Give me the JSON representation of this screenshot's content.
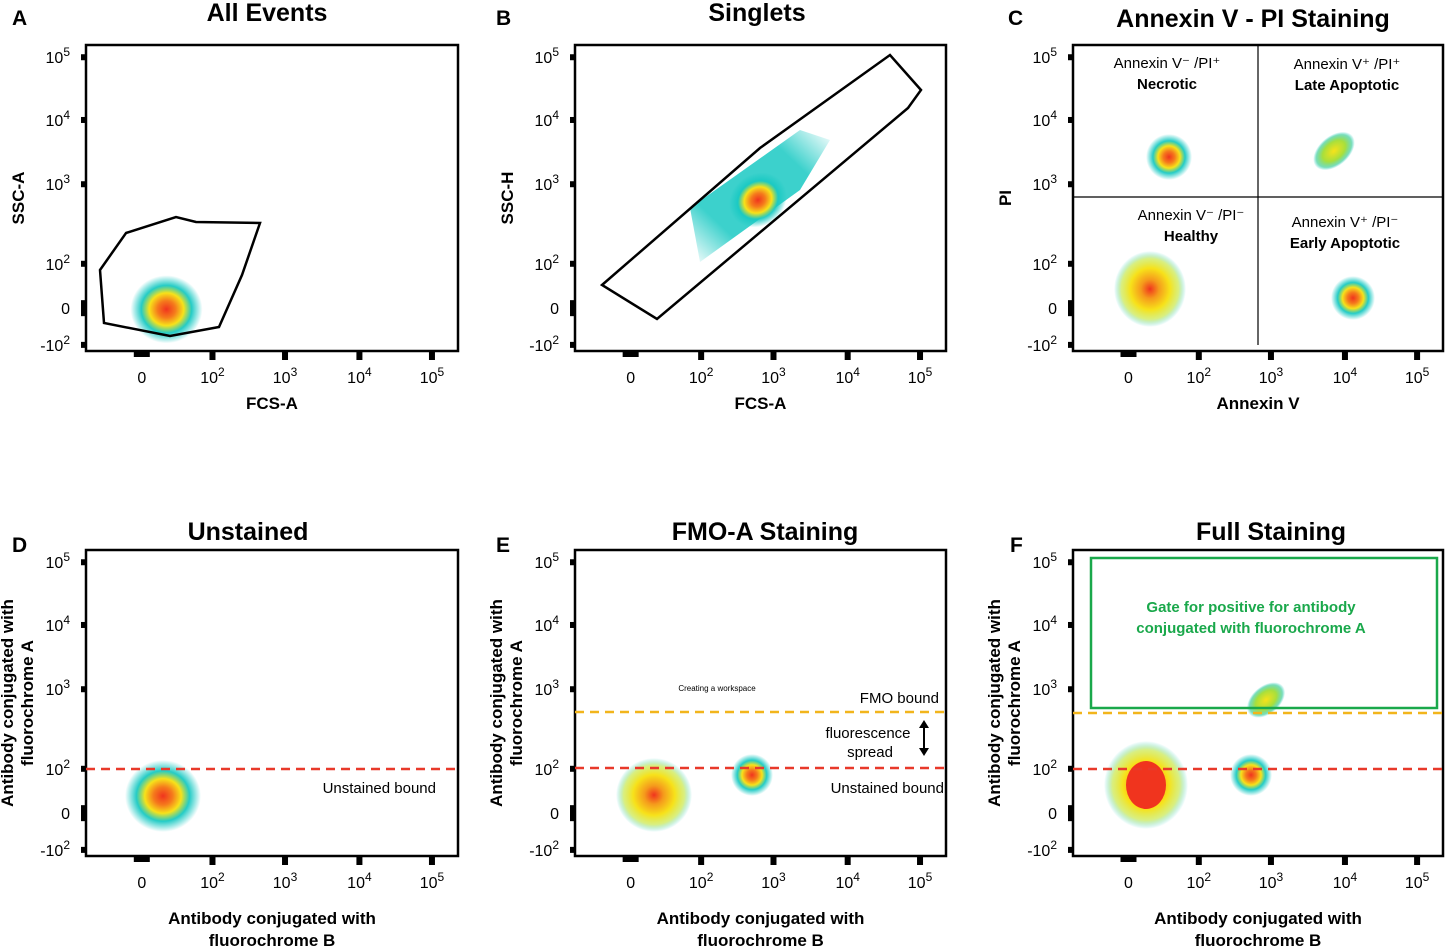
{
  "colors": {
    "frame": "#000000",
    "unstained_bound": "#e8392a",
    "fmo_bound": "#f2b51c",
    "positive_gate": "#1aa84b",
    "heat_core": "#f0341e",
    "heat_mid": "#f7e21a",
    "heat_outer": "#19c9c3"
  },
  "axis_ticks": {
    "x": [
      "0",
      "10^2",
      "10^3",
      "10^4",
      "10^5"
    ],
    "y": [
      "10^5",
      "10^4",
      "10^3",
      "10^2",
      "0",
      "-10^2"
    ]
  },
  "chart_data": [
    {
      "id": "A",
      "type": "scatter",
      "title": "All Events",
      "xlabel": "FCS-A",
      "ylabel": "SSC-A",
      "scale": "biexponential",
      "populations": [
        {
          "name": "",
          "x": 25,
          "y": 20,
          "density": "high"
        }
      ],
      "gates": [
        {
          "shape": "polygon",
          "label": ""
        }
      ]
    },
    {
      "id": "B",
      "type": "scatter",
      "title": "Singlets",
      "xlabel": "FCS-A",
      "ylabel": "SSC-H",
      "scale": "biexponential",
      "populations": [
        {
          "name": "",
          "x": 600,
          "y": 600,
          "density": "high",
          "shape": "diagonal streak"
        }
      ],
      "gates": [
        {
          "shape": "diagonal polygon",
          "label": ""
        }
      ]
    },
    {
      "id": "C",
      "type": "scatter",
      "title": "Annexin V - PI Staining",
      "xlabel": "Annexin V",
      "ylabel": "PI",
      "scale": "biexponential",
      "quadrant_split": {
        "x": 600,
        "y": 1000
      },
      "quadrants": [
        {
          "position": "top-left",
          "label_line1": "Annexin V⁻ /PI⁺",
          "label_line2": "Necrotic"
        },
        {
          "position": "top-right",
          "label_line1": "Annexin V⁺ /PI⁺",
          "label_line2": "Late Apoptotic"
        },
        {
          "position": "bottom-left",
          "label_line1": "Annexin V⁻ /PI⁻",
          "label_line2": "Healthy"
        },
        {
          "position": "bottom-right",
          "label_line1": "Annexin V⁺ /PI⁻",
          "label_line2": "Early Apoptotic"
        }
      ],
      "populations": [
        {
          "quadrant": "top-left",
          "x": 50,
          "y": 2500
        },
        {
          "quadrant": "top-right",
          "x": 8000,
          "y": 3000
        },
        {
          "quadrant": "bottom-left",
          "x": 20,
          "y": 20
        },
        {
          "quadrant": "bottom-right",
          "x": 12000,
          "y": 5
        }
      ]
    },
    {
      "id": "D",
      "type": "scatter",
      "title": "Unstained",
      "xlabel": "Antibody conjugated with fluorochrome B",
      "ylabel": "Antibody conjugated with fluorochrome A",
      "scale": "biexponential",
      "thresholds": [
        {
          "name": "Unstained bound",
          "y": 80,
          "style": "dashed red"
        }
      ],
      "populations": [
        {
          "x": 25,
          "y": 20
        }
      ]
    },
    {
      "id": "E",
      "type": "scatter",
      "title": "FMO-A Staining",
      "xlabel": "Antibody conjugated with fluorochrome B",
      "ylabel": "Antibody conjugated with fluorochrome A",
      "scale": "biexponential",
      "thresholds": [
        {
          "name": "Unstained bound",
          "y": 80,
          "style": "dashed red"
        },
        {
          "name": "FMO bound",
          "y": 450,
          "style": "dashed yellow"
        }
      ],
      "annotations": [
        "fluorescence spread",
        "Creating a workspace"
      ],
      "populations": [
        {
          "x": 25,
          "y": 20
        },
        {
          "x": 500,
          "y": 60
        }
      ]
    },
    {
      "id": "F",
      "type": "scatter",
      "title": "Full Staining",
      "xlabel": "Antibody conjugated with fluorochrome B",
      "ylabel": "Antibody conjugated with fluorochrome A",
      "scale": "biexponential",
      "thresholds": [
        {
          "name": "",
          "y": 80,
          "style": "dashed red"
        },
        {
          "name": "",
          "y": 450,
          "style": "dashed yellow"
        }
      ],
      "gates": [
        {
          "shape": "rectangle",
          "label": "Gate for positive for antibody conjugated with fluorochrome A"
        }
      ],
      "populations": [
        {
          "x": 25,
          "y": 20
        },
        {
          "x": 500,
          "y": 60
        },
        {
          "x": 700,
          "y": 600
        }
      ]
    }
  ],
  "panels": [
    {
      "letter": "A",
      "title": "All Events",
      "xlabel": [
        "FCS-A"
      ],
      "ylabel": [
        "SSC-A"
      ]
    },
    {
      "letter": "B",
      "title": "Singlets",
      "xlabel": [
        "FCS-A"
      ],
      "ylabel": [
        "SSC-H"
      ]
    },
    {
      "letter": "C",
      "title": "Annexin V - PI Staining",
      "xlabel": [
        "Annexin V"
      ],
      "ylabel": [
        "PI"
      ]
    },
    {
      "letter": "D",
      "title": "Unstained",
      "xlabel": [
        "Antibody conjugated with",
        "fluorochrome B"
      ],
      "ylabel": [
        "Antibody conjugated with",
        "fluorochrome A"
      ]
    },
    {
      "letter": "E",
      "title": "FMO-A Staining",
      "xlabel": [
        "Antibody conjugated with",
        "fluorochrome B"
      ],
      "ylabel": [
        "Antibody conjugated with",
        "fluorochrome A"
      ]
    },
    {
      "letter": "F",
      "title": "Full Staining",
      "xlabel": [
        "Antibody conjugated with",
        "fluorochrome B"
      ],
      "ylabel": [
        "Antibody conjugated with",
        "fluorochrome A"
      ]
    }
  ],
  "annotations": {
    "C": {
      "tl1": "Annexin V⁻ /PI⁺",
      "tl2": "Necrotic",
      "tr1": "Annexin V⁺ /PI⁺",
      "tr2": "Late Apoptotic",
      "bl1": "Annexin V⁻ /PI⁻",
      "bl2": "Healthy",
      "br1": "Annexin V⁺ /PI⁻",
      "br2": "Early Apoptotic"
    },
    "D": {
      "unstained_bound": "Unstained bound"
    },
    "E": {
      "fmo_bound": "FMO bound",
      "spread1": "fluorescence",
      "spread2": "spread",
      "unstained_bound": "Unstained bound",
      "workspace": "Creating a workspace"
    },
    "F": {
      "gate1": "Gate for positive for antibody",
      "gate2": "conjugated with fluorochrome A"
    }
  }
}
